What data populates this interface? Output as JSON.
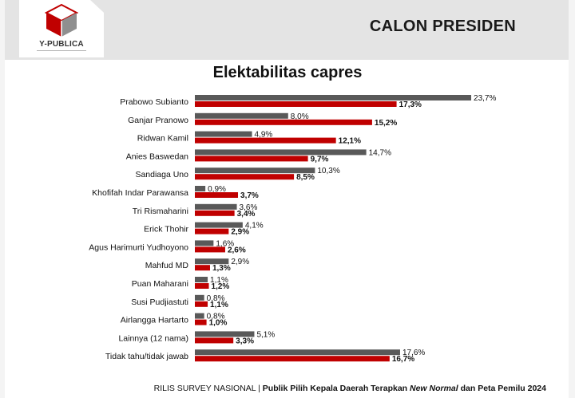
{
  "header": {
    "title": "CALON PRESIDEN",
    "logo_text": "Y-PUBLICA"
  },
  "chart_data": {
    "type": "bar",
    "orientation": "horizontal",
    "title": "Elektabilitas capres",
    "categories": [
      "Prabowo Subianto",
      "Ganjar Pranowo",
      "Ridwan Kamil",
      "Anies Baswedan",
      "Sandiaga Uno",
      "Khofifah Indar Parawansa",
      "Tri Rismaharini",
      "Erick Thohir",
      "Agus Harimurti Yudhoyono",
      "Mahfud MD",
      "Puan Maharani",
      "Susi Pudjiastuti",
      "Airlangga Hartarto",
      "Lainnya (12 nama)",
      "Tidak tahu/tidak jawab"
    ],
    "series": [
      {
        "color": "#595959",
        "label_bold": false,
        "values": [
          23.7,
          8.0,
          4.9,
          14.7,
          10.3,
          0.9,
          3.6,
          4.1,
          1.6,
          2.9,
          1.1,
          0.8,
          0.8,
          5.1,
          17.6
        ]
      },
      {
        "color": "#c00000",
        "label_bold": true,
        "values": [
          17.3,
          15.2,
          12.1,
          9.7,
          8.5,
          3.7,
          3.4,
          2.9,
          2.6,
          1.3,
          1.2,
          1.1,
          1.0,
          3.3,
          16.7
        ]
      }
    ],
    "value_suffix": "%",
    "decimal_separator": ",",
    "xlim": [
      0,
      25
    ],
    "grid": false,
    "legend": "none"
  },
  "footer": {
    "prefix": "RILIS SURVEY NASIONAL | ",
    "part1": "Publik Pilih Kepala Daerah Terapkan ",
    "italic": "New Normal",
    "part2": " dan Peta Pemilu 2024"
  }
}
